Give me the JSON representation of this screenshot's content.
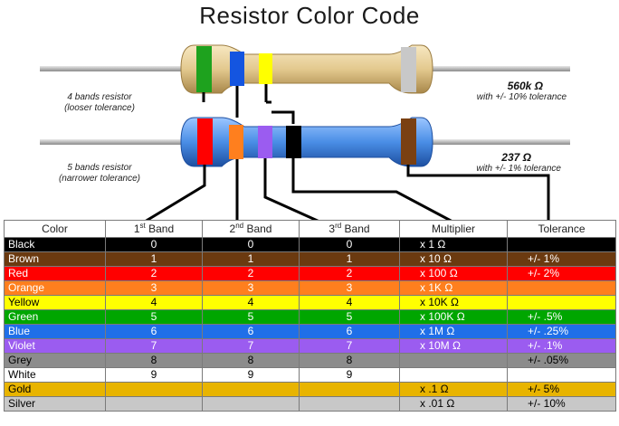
{
  "title": "Resistor Color Code",
  "resistor4": {
    "label_line1": "4 bands resistor",
    "label_line2": "(looser tolerance)",
    "value": "560k Ω",
    "tolerance": "with +/- 10% tolerance"
  },
  "resistor5": {
    "label_line1": "5 bands resistor",
    "label_line2": "(narrower tolerance)",
    "value": "237 Ω",
    "tolerance": "with +/- 1% tolerance"
  },
  "table": {
    "headers": {
      "color": "Color",
      "band1_num": "1",
      "band1_sup": "st",
      "band1_txt": " Band",
      "band2_num": "2",
      "band2_sup": "nd",
      "band2_txt": " Band",
      "band3_num": "3",
      "band3_sup": "rd",
      "band3_txt": " Band",
      "multiplier": "Multiplier",
      "tolerance": "Tolerance"
    },
    "rows": [
      {
        "name": "Black",
        "b1": "0",
        "b2": "0",
        "b3": "0",
        "mult": "x 1 Ω",
        "tol": "",
        "bg": "#000000",
        "fg": "#ffffff"
      },
      {
        "name": "Brown",
        "b1": "1",
        "b2": "1",
        "b3": "1",
        "mult": "x 10 Ω",
        "tol": "+/-  1%",
        "bg": "#6b3a10",
        "fg": "#ffffff"
      },
      {
        "name": "Red",
        "b1": "2",
        "b2": "2",
        "b3": "2",
        "mult": "x 100 Ω",
        "tol": "+/-  2%",
        "bg": "#ff0000",
        "fg": "#ffffff"
      },
      {
        "name": "Orange",
        "b1": "3",
        "b2": "3",
        "b3": "3",
        "mult": "x 1K Ω",
        "tol": "",
        "bg": "#ff7f1e",
        "fg": "#ffffff"
      },
      {
        "name": "Yellow",
        "b1": "4",
        "b2": "4",
        "b3": "4",
        "mult": "x 10K Ω",
        "tol": "",
        "bg": "#ffff00",
        "fg": "#000000"
      },
      {
        "name": "Green",
        "b1": "5",
        "b2": "5",
        "b3": "5",
        "mult": "x 100K Ω",
        "tol": "+/-  .5%",
        "bg": "#00a600",
        "fg": "#ffffff"
      },
      {
        "name": "Blue",
        "b1": "6",
        "b2": "6",
        "b3": "6",
        "mult": "x 1M Ω",
        "tol": "+/-  .25%",
        "bg": "#1f6fe8",
        "fg": "#ffffff"
      },
      {
        "name": "Violet",
        "b1": "7",
        "b2": "7",
        "b3": "7",
        "mult": "x 10M Ω",
        "tol": "+/-  .1%",
        "bg": "#9b5cf0",
        "fg": "#ffffff"
      },
      {
        "name": "Grey",
        "b1": "8",
        "b2": "8",
        "b3": "8",
        "mult": "",
        "tol": "+/-  .05%",
        "bg": "#8c8c8c",
        "fg": "#000000"
      },
      {
        "name": "White",
        "b1": "9",
        "b2": "9",
        "b3": "9",
        "mult": "",
        "tol": "",
        "bg": "#ffffff",
        "fg": "#000000"
      },
      {
        "name": "Gold",
        "b1": "",
        "b2": "",
        "b3": "",
        "mult": "x .1 Ω",
        "tol": "+/-  5%",
        "bg": "#e8b400",
        "fg": "#000000"
      },
      {
        "name": "Silver",
        "b1": "",
        "b2": "",
        "b3": "",
        "mult": "x .01 Ω",
        "tol": "+/-  10%",
        "bg": "#c8c8c8",
        "fg": "#000000"
      }
    ]
  },
  "colors": {
    "body4": "#e3c98e",
    "body5": "#4a8ee6",
    "lead": "#b8b8b8",
    "band4": [
      "#1ea21e",
      "#1455e0",
      "#ffff00",
      "#c8c8c8"
    ],
    "band5": [
      "#ff0000",
      "#ff7f1e",
      "#9b5cf0",
      "#000000",
      "#7a4012"
    ]
  }
}
